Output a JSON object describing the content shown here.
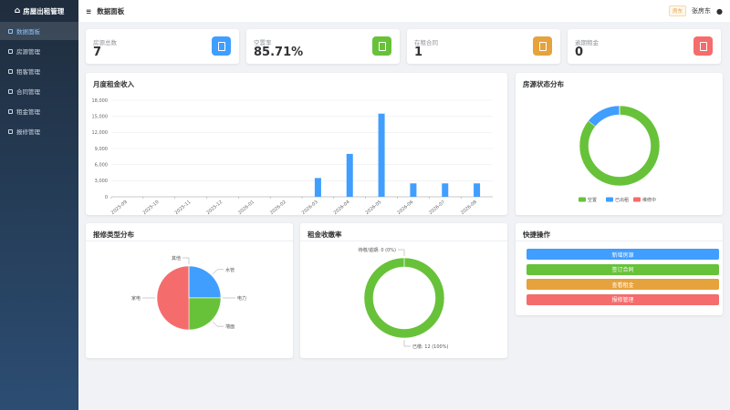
{
  "sidebar": {
    "title": "房屋出租管理",
    "menu": [
      "数据面板",
      "房源管理",
      "租客管理",
      "合同管理",
      "租金管理",
      "报修管理"
    ]
  },
  "header": {
    "title": "数据面板",
    "role": "房东",
    "user": "张房东"
  },
  "stats": [
    {
      "label": "房源总数",
      "value": "7",
      "color": "#409EFF"
    },
    {
      "label": "空置率",
      "value": "85.71%",
      "color": "#67C23A"
    },
    {
      "label": "在租合同",
      "value": "1",
      "color": "#E6A23C"
    },
    {
      "label": "逾期租金",
      "value": "0",
      "color": "#F56C6C"
    }
  ],
  "chart_data": [
    {
      "type": "bar",
      "title": "月度租金收入",
      "categories": [
        "2025-09",
        "2025-10",
        "2025-11",
        "2025-12",
        "2026-01",
        "2026-02",
        "2026-03",
        "2026-04",
        "2026-05",
        "2026-06",
        "2026-07",
        "2026-08"
      ],
      "values": [
        0,
        0,
        0,
        0,
        0,
        0,
        3500,
        8000,
        15500,
        2500,
        2500,
        2500
      ],
      "color": "#409EFF",
      "ylim": [
        0,
        18000
      ],
      "yticks": [
        0,
        {
          "value": 3000,
          "label": "3,000"
        },
        {
          "value": 6000,
          "label": "6,000"
        },
        {
          "value": 9000,
          "label": "9,000"
        },
        {
          "value": 12000,
          "label": "12,000"
        },
        {
          "value": 15000,
          "label": "15,000"
        },
        {
          "value": 18000,
          "label": "18,000"
        }
      ],
      "grid": true
    },
    {
      "type": "donut",
      "title": "房源状态分布",
      "categories": [
        "空置",
        "已出租",
        "维修中"
      ],
      "values": [
        6,
        1,
        0
      ],
      "colors": [
        "#67C23A",
        "#409EFF",
        "#F56C6C"
      ],
      "legend": "bottom"
    },
    {
      "type": "pie",
      "title": "报修类型分布",
      "categories": [
        "水管",
        "电力",
        "墙面",
        "家电",
        "其他"
      ],
      "values": [
        1,
        0,
        1,
        2,
        0
      ],
      "colors": [
        "#409EFF",
        "#E6A23C",
        "#67C23A",
        "#F56C6C",
        "#909399"
      ]
    },
    {
      "type": "donut",
      "title": "租金收缴率",
      "values": [
        12,
        0
      ],
      "value_labels": [
        "已缴: 12 (100%)",
        "待缴/逾期: 0 (0%)"
      ],
      "colors": [
        "#67C23A",
        "#F56C6C"
      ]
    }
  ],
  "quick_actions": {
    "title": "快捷操作",
    "buttons": [
      {
        "label": "新增房源",
        "color": "#409EFF"
      },
      {
        "label": "签订合同",
        "color": "#67C23A"
      },
      {
        "label": "查看租金",
        "color": "#E6A23C"
      },
      {
        "label": "报修管理",
        "color": "#F56C6C"
      }
    ]
  }
}
